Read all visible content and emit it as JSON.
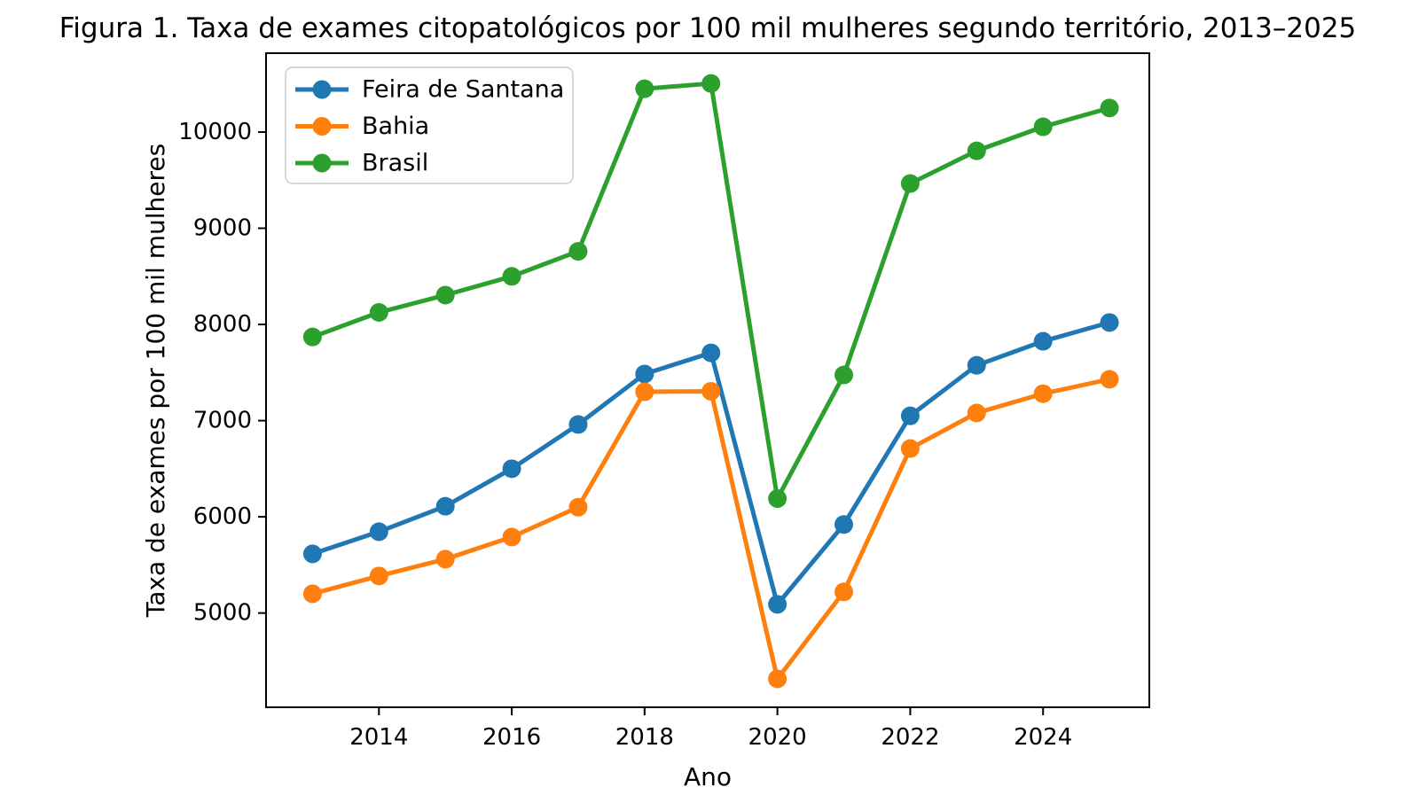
{
  "figure": {
    "title": "Figura 1. Taxa de exames citopatológicos por 100 mil mulheres segundo território, 2013–2025"
  },
  "chart_data": {
    "type": "line",
    "title": "Figura 1. Taxa de exames citopatológicos por 100 mil mulheres segundo território, 2013–2025",
    "xlabel": "Ano",
    "ylabel": "Taxa de exames por 100 mil mulheres",
    "x": [
      2013,
      2014,
      2015,
      2016,
      2017,
      2018,
      2019,
      2020,
      2021,
      2022,
      2023,
      2024,
      2025
    ],
    "series": [
      {
        "name": "Feira de Santana",
        "color": "#1f77b4",
        "values": [
          5615,
          5845,
          6110,
          6500,
          6960,
          7485,
          7705,
          5090,
          5920,
          7050,
          7575,
          7825,
          8020
        ]
      },
      {
        "name": "Bahia",
        "color": "#ff7f0e",
        "values": [
          5200,
          5385,
          5560,
          5790,
          6100,
          7300,
          7305,
          4315,
          5220,
          6710,
          7080,
          7280,
          7430
        ]
      },
      {
        "name": "Brasil",
        "color": "#2ca02c",
        "values": [
          7870,
          8125,
          8305,
          8500,
          8760,
          10450,
          10505,
          6190,
          7475,
          9465,
          9805,
          10055,
          10250
        ]
      }
    ],
    "xlim": [
      2012.3,
      2025.6
    ],
    "ylim": [
      4020,
      10820
    ],
    "xticks": [
      2014,
      2016,
      2018,
      2020,
      2022,
      2024
    ],
    "yticks": [
      5000,
      6000,
      7000,
      8000,
      9000,
      10000
    ],
    "grid": false,
    "legend_position": "upper left",
    "marker": "o",
    "axis_color": "#000000",
    "legend_border_color": "#cccccc"
  }
}
